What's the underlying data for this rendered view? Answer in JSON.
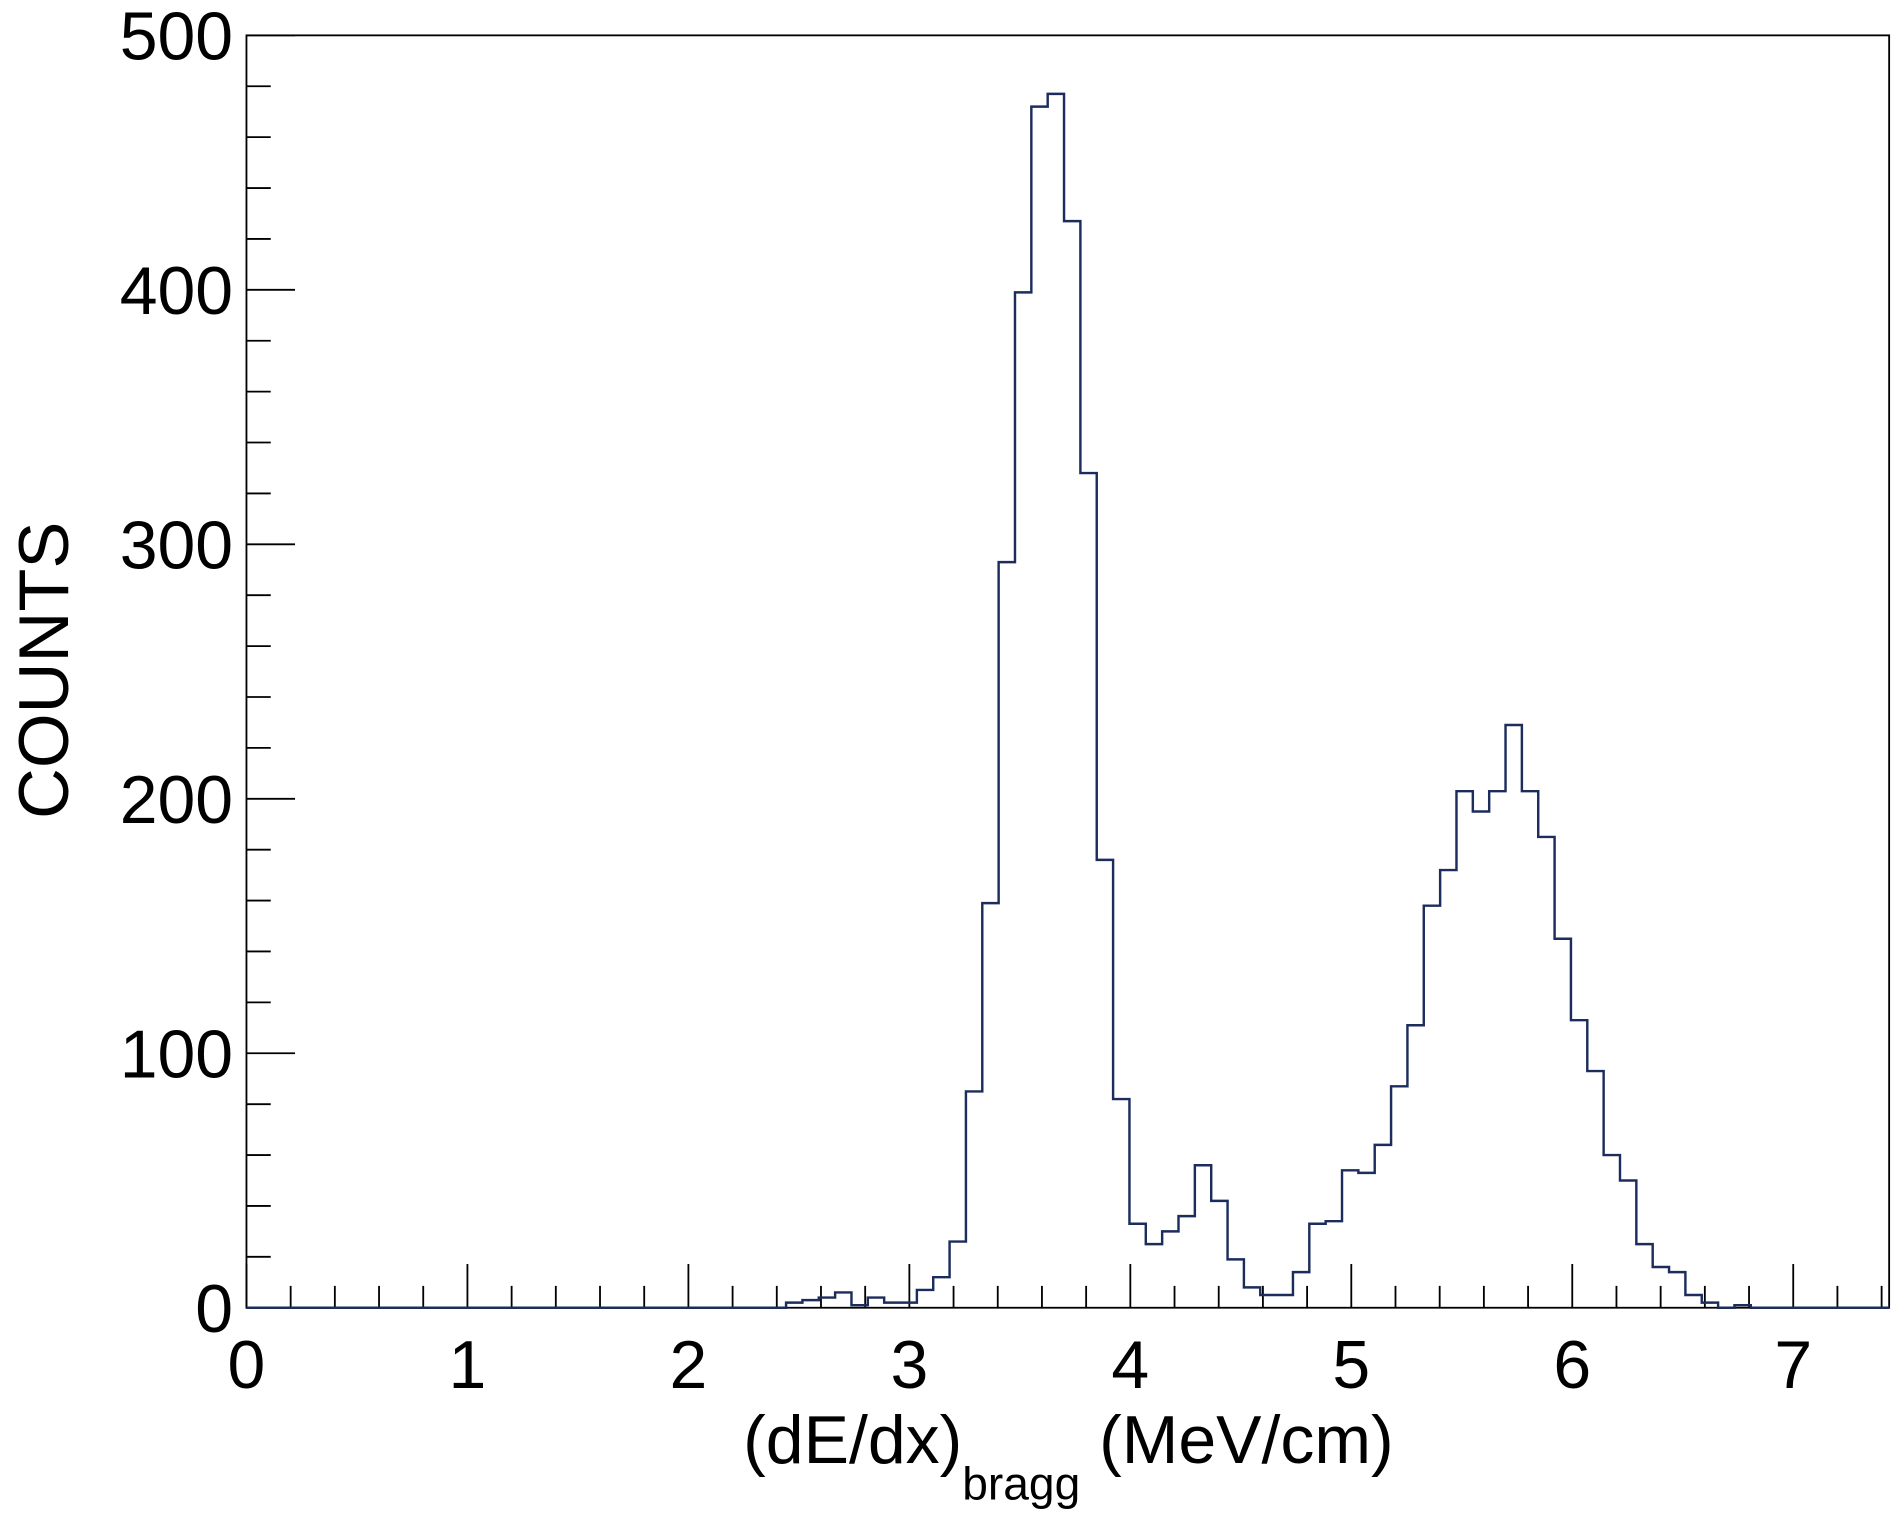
{
  "chart_data": {
    "type": "histogram",
    "title": "",
    "xlabel_main": "(dE/dx)",
    "xlabel_sub": "bragg",
    "xlabel_unit": "(MeV/cm)",
    "ylabel": "COUNTS",
    "xlim": [
      0,
      7.4
    ],
    "ylim": [
      0,
      500
    ],
    "bin_width": 0.074,
    "x_ticks": [
      "0",
      "1",
      "2",
      "3",
      "4",
      "5",
      "6",
      "7"
    ],
    "y_ticks": [
      "0",
      "100",
      "200",
      "300",
      "400",
      "500"
    ],
    "grid": false,
    "legend": "none",
    "line_color": "#1c2c5c",
    "counts": [
      0,
      0,
      0,
      0,
      0,
      0,
      0,
      0,
      0,
      0,
      0,
      0,
      0,
      0,
      0,
      0,
      0,
      0,
      0,
      0,
      0,
      0,
      0,
      0,
      0,
      0,
      0,
      0,
      0,
      0,
      0,
      0,
      0,
      2,
      3,
      4,
      6,
      1,
      4,
      2,
      2,
      7,
      12,
      26,
      85,
      159,
      293,
      399,
      472,
      477,
      427,
      328,
      176,
      82,
      33,
      25,
      30,
      36,
      56,
      42,
      19,
      8,
      5,
      5,
      14,
      33,
      34,
      54,
      53,
      64,
      87,
      111,
      158,
      172,
      203,
      195,
      203,
      229,
      203,
      185,
      145,
      113,
      93,
      60,
      50,
      25,
      16,
      14,
      5,
      2,
      0,
      1,
      0,
      0,
      0,
      0,
      0,
      0,
      0,
      0,
      0
    ]
  }
}
